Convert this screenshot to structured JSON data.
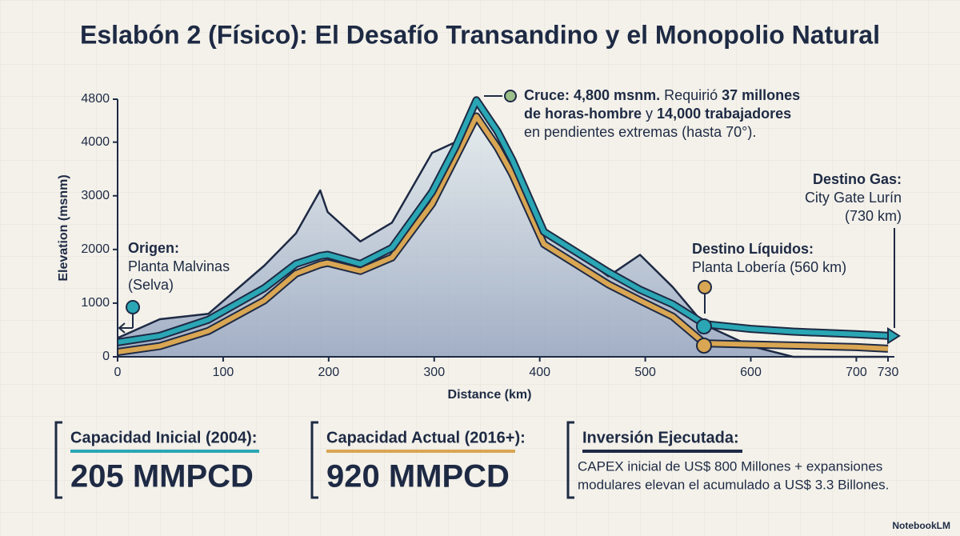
{
  "title": "Eslabón 2 (Físico): El Desafío Transandino y el Monopolio Natural",
  "chart_data": {
    "type": "line",
    "x": [
      0,
      40,
      86,
      139,
      169,
      192,
      199,
      230,
      260,
      298,
      320,
      340,
      360,
      374,
      404,
      465,
      495,
      526,
      556,
      600,
      640,
      700,
      730
    ],
    "xlim": [
      0,
      730
    ],
    "xticks": [
      0,
      100,
      200,
      300,
      400,
      500,
      600,
      700,
      730
    ],
    "ylim": [
      0,
      4800
    ],
    "yticks": [
      0,
      1000,
      2000,
      3000,
      4000,
      4800
    ],
    "xlabel": "Distance (km)",
    "ylabel": "Elevation (msnm)",
    "series": [
      {
        "color": "#1e2a44",
        "values": [
          350,
          700,
          800,
          1700,
          2300,
          3100,
          2700,
          2150,
          2500,
          3800,
          4000,
          4700,
          4100,
          3500,
          2400,
          1500,
          1900,
          1300,
          600,
          200,
          0,
          0,
          0
        ]
      },
      {
        "color": "#d9a653",
        "values": [
          90,
          200,
          480,
          1050,
          1550,
          1720,
          1750,
          1600,
          1850,
          2850,
          3700,
          4480,
          3900,
          3400,
          2100,
          1350,
          1050,
          750,
          250,
          230,
          210,
          180,
          150
        ]
      },
      {
        "color": "#2aa6b4",
        "values": [
          270,
          390,
          690,
          1280,
          1730,
          1880,
          1900,
          1730,
          2030,
          3070,
          3900,
          4780,
          4200,
          3670,
          2330,
          1580,
          1250,
          980,
          610,
          520,
          470,
          420,
          390
        ]
      }
    ],
    "annotations": [
      {
        "lines": [
          [
            {
              "text": "Origen:",
              "bold": true
            }
          ],
          [
            {
              "text": "Planta Malvinas"
            }
          ],
          [
            {
              "text": "(Selva)"
            }
          ]
        ]
      },
      {
        "lines": [
          [
            {
              "text": "Cruce: 4,800 msnm.",
              "bold": true
            },
            {
              "text": " Requirió "
            },
            {
              "text": "37 millones",
              "bold": true
            }
          ],
          [
            {
              "text": "de horas-hombre",
              "bold": true
            },
            {
              "text": " y "
            },
            {
              "text": "14,000 trabajadores",
              "bold": true
            }
          ],
          [
            {
              "text": "en pendientes extremas (hasta 70°)."
            }
          ]
        ]
      },
      {
        "lines": [
          [
            {
              "text": "Destino Líquidos:",
              "bold": true
            }
          ],
          [
            {
              "text": "Planta Lobería (560 km)"
            }
          ]
        ]
      },
      {
        "lines": [
          [
            {
              "text": "Destino Gas:",
              "bold": true
            }
          ],
          [
            {
              "text": "City Gate Lurín"
            }
          ],
          [
            {
              "text": "(730 km)"
            }
          ]
        ]
      }
    ]
  },
  "stats": [
    {
      "label": "Capacidad Inicial (2004):",
      "value": "205 MMPCD",
      "color": "#2aa6b4"
    },
    {
      "label": "Capacidad Actual (2016+):",
      "value": "920 MMPCD",
      "color": "#d9a653"
    },
    {
      "label": "Inversión Ejecutada:",
      "color": "#1e2a44",
      "lines": [
        "CAPEX inicial de US$ 800 Millones + expansiones",
        "modulares elevan el acumulado a US$ 3.3 Billones."
      ]
    }
  ],
  "watermark": "NotebookLM"
}
